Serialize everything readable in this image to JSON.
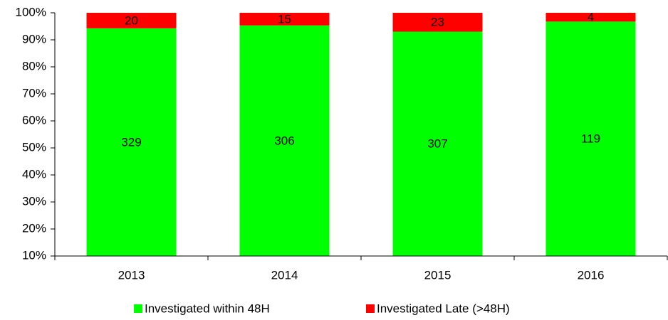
{
  "chart_data": {
    "type": "bar",
    "stacking": "percent",
    "categories": [
      "2013",
      "2014",
      "2015",
      "2016"
    ],
    "series": [
      {
        "name": "Investigated within 48H",
        "color": "#00ff00",
        "values": [
          329,
          306,
          307,
          119
        ]
      },
      {
        "name": "Investigated Late (>48H)",
        "color": "#ff0000",
        "values": [
          20,
          15,
          23,
          4
        ]
      }
    ],
    "ylim": [
      10,
      100
    ],
    "yticks": [
      {
        "value": 10,
        "label": "10%"
      },
      {
        "value": 20,
        "label": "20%"
      },
      {
        "value": 30,
        "label": "30%"
      },
      {
        "value": 40,
        "label": "40%"
      },
      {
        "value": 50,
        "label": "50%"
      },
      {
        "value": 60,
        "label": "60%"
      },
      {
        "value": 70,
        "label": "70%"
      },
      {
        "value": 80,
        "label": "80%"
      },
      {
        "value": 90,
        "label": "90%"
      },
      {
        "value": 100,
        "label": "100%"
      }
    ],
    "legend": "bottom"
  }
}
